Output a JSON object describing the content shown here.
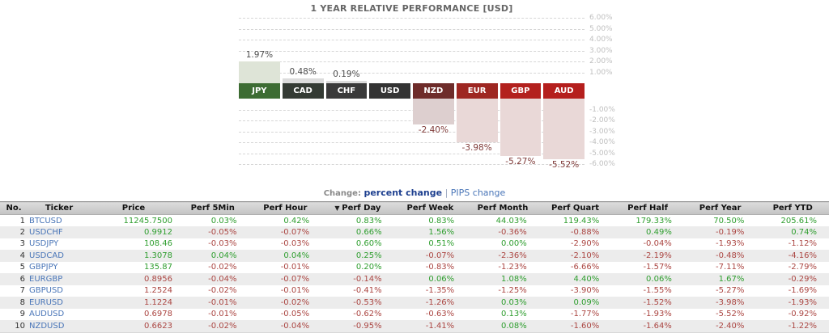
{
  "colors": {
    "positive": "#2f9e2f",
    "negative": "#ab4642",
    "ticker_link": "#4a76b8",
    "header_bg": "#cbcbcb",
    "row_alt_bg": "#ececec",
    "grid_label": "#bfbfbf"
  },
  "chart": {
    "title": "1 YEAR RELATIVE PERFORMANCE  [USD]",
    "chart_data": {
      "type": "bar",
      "title": "1 YEAR RELATIVE PERFORMANCE [USD]",
      "categories": [
        "JPY",
        "CAD",
        "CHF",
        "USD",
        "NZD",
        "EUR",
        "GBP",
        "AUD"
      ],
      "values": [
        1.97,
        0.48,
        0.19,
        0.0,
        -2.4,
        -3.98,
        -5.27,
        -5.52
      ],
      "value_labels": [
        "1.97%",
        "0.48%",
        "0.19%",
        "",
        "-2.40%",
        "-3.98%",
        "-5.27%",
        "-5.52%"
      ],
      "ylim": [
        -6,
        6
      ],
      "y_ticks": [
        "6.00%",
        "5.00%",
        "4.00%",
        "3.00%",
        "2.00%",
        "1.00%",
        "-1.00%",
        "-2.00%",
        "-3.00%",
        "-4.00%",
        "-5.00%",
        "-6.00%"
      ],
      "grid": true,
      "legend_position": "none"
    },
    "columns": [
      {
        "code": "JPY",
        "value": 1.97,
        "label": "1.97%",
        "band_bg": "#3d6c33",
        "bar": "#dee4d7"
      },
      {
        "code": "CAD",
        "value": 0.48,
        "label": "0.48%",
        "band_bg": "#343b34",
        "bar": "#dcdcdc"
      },
      {
        "code": "CHF",
        "value": 0.19,
        "label": "0.19%",
        "band_bg": "#3a3a3a",
        "bar": "#dcdcdc"
      },
      {
        "code": "USD",
        "value": 0,
        "label": "",
        "band_bg": "#343434",
        "bar": "#dcdcdc"
      },
      {
        "code": "NZD",
        "value": -2.4,
        "label": "-2.40%",
        "band_bg": "#6e2c2a",
        "bar": "#ddcfcf"
      },
      {
        "code": "EUR",
        "value": -3.98,
        "label": "-3.98%",
        "band_bg": "#9e2722",
        "bar": "#e9d8d7"
      },
      {
        "code": "GBP",
        "value": -5.27,
        "label": "-5.27%",
        "band_bg": "#b3211e",
        "bar": "#e9d8d7"
      },
      {
        "code": "AUD",
        "value": -5.52,
        "label": "-5.52%",
        "band_bg": "#b51f1d",
        "bar": "#e9d8d7"
      }
    ]
  },
  "change_bar": {
    "label": "Change:",
    "separator": "|",
    "options": [
      {
        "text": "percent change",
        "active": true
      },
      {
        "text": "PIPS change",
        "active": false
      }
    ]
  },
  "table": {
    "columns": [
      "No.",
      "Ticker",
      "Price",
      "Perf 5Min",
      "Perf Hour",
      "Perf Day",
      "Perf Week",
      "Perf Month",
      "Perf Quart",
      "Perf Half",
      "Perf Year",
      "Perf YTD"
    ],
    "sort_column": "Perf Day",
    "sort_indicator": "▼",
    "rows": [
      {
        "no": "1",
        "ticker": "BTCUSD",
        "price": "11245.7500",
        "price_trend": "up",
        "perfs": [
          "0.03%",
          "0.42%",
          "0.83%",
          "0.83%",
          "44.03%",
          "119.43%",
          "179.33%",
          "70.50%",
          "205.61%"
        ]
      },
      {
        "no": "2",
        "ticker": "USDCHF",
        "price": "0.9912",
        "price_trend": "up",
        "perfs": [
          "-0.05%",
          "-0.07%",
          "0.66%",
          "1.56%",
          "-0.36%",
          "-0.88%",
          "0.49%",
          "-0.19%",
          "0.74%"
        ]
      },
      {
        "no": "3",
        "ticker": "USDJPY",
        "price": "108.46",
        "price_trend": "up",
        "perfs": [
          "-0.03%",
          "-0.03%",
          "0.60%",
          "0.51%",
          "0.00%",
          "-2.90%",
          "-0.04%",
          "-1.93%",
          "-1.12%"
        ]
      },
      {
        "no": "4",
        "ticker": "USDCAD",
        "price": "1.3078",
        "price_trend": "up",
        "perfs": [
          "0.04%",
          "0.04%",
          "0.25%",
          "-0.07%",
          "-2.36%",
          "-2.10%",
          "-2.19%",
          "-0.48%",
          "-4.16%"
        ]
      },
      {
        "no": "5",
        "ticker": "GBPJPY",
        "price": "135.87",
        "price_trend": "up",
        "perfs": [
          "-0.02%",
          "-0.01%",
          "0.20%",
          "-0.83%",
          "-1.23%",
          "-6.66%",
          "-1.57%",
          "-7.11%",
          "-2.79%"
        ]
      },
      {
        "no": "6",
        "ticker": "EURGBP",
        "price": "0.8956",
        "price_trend": "down",
        "perfs": [
          "-0.04%",
          "-0.07%",
          "-0.14%",
          "0.06%",
          "1.08%",
          "4.40%",
          "0.06%",
          "1.67%",
          "-0.29%"
        ]
      },
      {
        "no": "7",
        "ticker": "GBPUSD",
        "price": "1.2524",
        "price_trend": "down",
        "perfs": [
          "-0.02%",
          "-0.01%",
          "-0.41%",
          "-1.35%",
          "-1.25%",
          "-3.90%",
          "-1.55%",
          "-5.27%",
          "-1.69%"
        ]
      },
      {
        "no": "8",
        "ticker": "EURUSD",
        "price": "1.1224",
        "price_trend": "down",
        "perfs": [
          "-0.01%",
          "-0.02%",
          "-0.53%",
          "-1.26%",
          "0.03%",
          "0.09%",
          "-1.52%",
          "-3.98%",
          "-1.93%"
        ]
      },
      {
        "no": "9",
        "ticker": "AUDUSD",
        "price": "0.6978",
        "price_trend": "down",
        "perfs": [
          "-0.01%",
          "-0.05%",
          "-0.62%",
          "-0.63%",
          "0.13%",
          "-1.77%",
          "-1.93%",
          "-5.52%",
          "-0.92%"
        ]
      },
      {
        "no": "10",
        "ticker": "NZDUSD",
        "price": "0.6623",
        "price_trend": "down",
        "perfs": [
          "-0.02%",
          "-0.04%",
          "-0.95%",
          "-1.41%",
          "0.08%",
          "-1.60%",
          "-1.64%",
          "-2.40%",
          "-1.22%"
        ]
      }
    ]
  }
}
